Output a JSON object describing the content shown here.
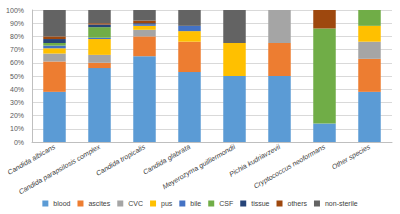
{
  "chart_data": {
    "type": "bar",
    "stacked": true,
    "grid": true,
    "legend": "bottom",
    "categories": [
      "Candida albicans",
      "Candida parapsilosis complex",
      "Candida tropicalis",
      "Candida glabrata",
      "Meyerozyma guilliermondii",
      "Pichia kudriavzevii",
      "Cryptococcus neoformans",
      "Other species"
    ],
    "ylim": [
      0,
      100
    ],
    "yticks": [
      {
        "value": 0,
        "label": "0%"
      },
      {
        "value": 10,
        "label": "10%"
      },
      {
        "value": 20,
        "label": "20%"
      },
      {
        "value": 30,
        "label": "30%"
      },
      {
        "value": 40,
        "label": "40%"
      },
      {
        "value": 50,
        "label": "50%"
      },
      {
        "value": 60,
        "label": "60%"
      },
      {
        "value": 70,
        "label": "70%"
      },
      {
        "value": 80,
        "label": "80%"
      },
      {
        "value": 90,
        "label": "90%"
      },
      {
        "value": 100,
        "label": "100%"
      }
    ],
    "series": [
      {
        "name": "blood",
        "color": "#5b9bd5",
        "values": [
          38,
          56,
          65,
          53,
          50,
          50,
          14,
          38
        ]
      },
      {
        "name": "ascites",
        "color": "#ed7d31",
        "values": [
          23,
          4,
          15,
          23,
          0,
          25,
          0,
          25
        ]
      },
      {
        "name": "CVC",
        "color": "#a5a5a5",
        "values": [
          6,
          6,
          5,
          0,
          0,
          25,
          0,
          13
        ]
      },
      {
        "name": "pus",
        "color": "#ffc000",
        "values": [
          4,
          12,
          3,
          8,
          25,
          0,
          0,
          12
        ]
      },
      {
        "name": "bile",
        "color": "#4472c4",
        "values": [
          2,
          1,
          1,
          4,
          0,
          0,
          0,
          0
        ]
      },
      {
        "name": "CSF",
        "color": "#70ad47",
        "values": [
          2,
          8,
          0,
          0,
          0,
          0,
          72,
          12
        ]
      },
      {
        "name": "tissue",
        "color": "#264478",
        "values": [
          3,
          2,
          1,
          0,
          0,
          0,
          0,
          0
        ]
      },
      {
        "name": "others",
        "color": "#9e480e",
        "values": [
          2,
          1,
          2,
          0,
          0,
          0,
          14,
          0
        ]
      },
      {
        "name": "non-sterile",
        "color": "#636363",
        "values": [
          20,
          10,
          8,
          12,
          25,
          0,
          0,
          0
        ]
      }
    ]
  }
}
